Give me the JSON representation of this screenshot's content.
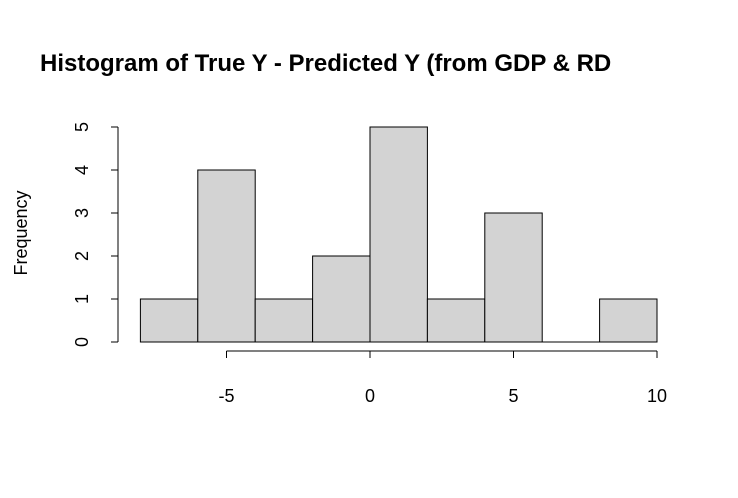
{
  "chart_data": {
    "type": "histogram",
    "title": "Histogram of True Y - Predicted Y (from GDP & RD",
    "xlabel": "",
    "ylabel": "Frequency",
    "bins": [
      {
        "start": -8,
        "end": -6,
        "count": 1
      },
      {
        "start": -6,
        "end": -4,
        "count": 4
      },
      {
        "start": -4,
        "end": -2,
        "count": 1
      },
      {
        "start": -2,
        "end": 0,
        "count": 2
      },
      {
        "start": 0,
        "end": 2,
        "count": 5
      },
      {
        "start": 2,
        "end": 4,
        "count": 1
      },
      {
        "start": 4,
        "end": 6,
        "count": 3
      },
      {
        "start": 6,
        "end": 8,
        "count": 0
      },
      {
        "start": 8,
        "end": 10,
        "count": 1
      }
    ],
    "x_ticks": [
      -5,
      0,
      5,
      10
    ],
    "y_ticks": [
      0,
      1,
      2,
      3,
      4,
      5
    ],
    "xlim": [
      -8,
      10
    ],
    "ylim": [
      0,
      5
    ],
    "bar_color": "#d3d3d3",
    "grid": false,
    "legend": "none"
  }
}
